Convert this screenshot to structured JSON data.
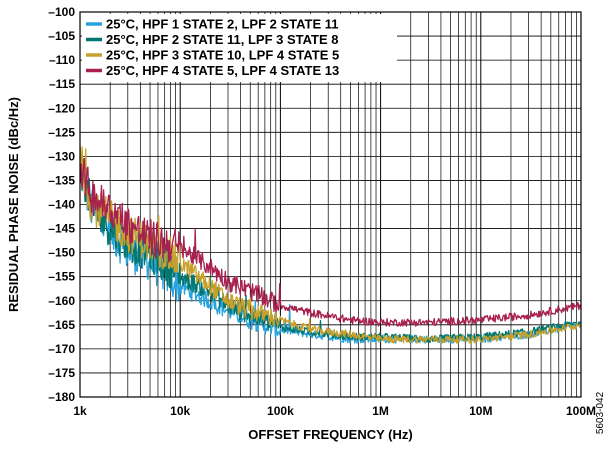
{
  "chart_data": {
    "type": "line",
    "xlabel": "OFFSET FREQUENCY (Hz)",
    "ylabel": "RESIDUAL PHASE NOISE (dBc/Hz)",
    "x_scale": "log",
    "xlim": [
      1000,
      100000000
    ],
    "ylim": [
      -180,
      -100
    ],
    "grid": true,
    "legend_position": "top-left",
    "x_tick_labels": [
      "1k",
      "10k",
      "100k",
      "1M",
      "10M",
      "100M"
    ],
    "y_ticks": [
      -100,
      -105,
      -110,
      -115,
      -120,
      -125,
      -130,
      -135,
      -140,
      -145,
      -150,
      -155,
      -160,
      -165,
      -170,
      -175,
      -180
    ],
    "series": [
      {
        "name": "25°C, HPF 1 STATE 2, LPF 2 STATE 11",
        "color": "#29a3dd",
        "x": [
          1000,
          1300,
          2000,
          3000,
          5000,
          10000,
          20000,
          30000,
          50000,
          100000,
          200000,
          500000,
          1000000,
          3000000,
          10000000,
          30000000,
          100000000
        ],
        "y": [
          -133,
          -141,
          -146,
          -150,
          -152,
          -157,
          -160,
          -162,
          -164,
          -166,
          -167,
          -168,
          -168,
          -168,
          -168,
          -167,
          -165
        ]
      },
      {
        "name": "25°C, HPF 2 STATE 11, LPF 3 STATE 8",
        "color": "#007770",
        "x": [
          1000,
          1300,
          2000,
          3000,
          5000,
          10000,
          20000,
          30000,
          50000,
          100000,
          200000,
          500000,
          1000000,
          3000000,
          10000000,
          30000000,
          100000000
        ],
        "y": [
          -132,
          -140,
          -145,
          -148,
          -150,
          -155,
          -158,
          -161,
          -163,
          -165.5,
          -166.5,
          -167.5,
          -167.5,
          -168,
          -167.5,
          -166.5,
          -164.5
        ]
      },
      {
        "name": "25°C, HPF 3 STATE 10, LPF 4 STATE 5",
        "color": "#c8a02c",
        "x": [
          1000,
          1300,
          2000,
          3000,
          5000,
          10000,
          20000,
          30000,
          50000,
          100000,
          200000,
          500000,
          1000000,
          3000000,
          10000000,
          30000000,
          100000000
        ],
        "y": [
          -130,
          -140,
          -143,
          -146,
          -148,
          -152,
          -157,
          -160,
          -162,
          -164,
          -166,
          -167,
          -168,
          -168,
          -168,
          -167,
          -165
        ]
      },
      {
        "name": "25°C, HPF 4 STATE 5, LPF 4 STATE 13",
        "color": "#a8204e",
        "x": [
          1000,
          1300,
          2000,
          3000,
          5000,
          10000,
          20000,
          30000,
          50000,
          100000,
          200000,
          500000,
          1000000,
          3000000,
          10000000,
          30000000,
          100000000
        ],
        "y": [
          -132,
          -138,
          -141,
          -144,
          -147,
          -149,
          -153,
          -156,
          -158,
          -161,
          -162.5,
          -164,
          -164.5,
          -164.5,
          -164,
          -163,
          -161
        ]
      }
    ]
  },
  "figure_id": "5603-042"
}
